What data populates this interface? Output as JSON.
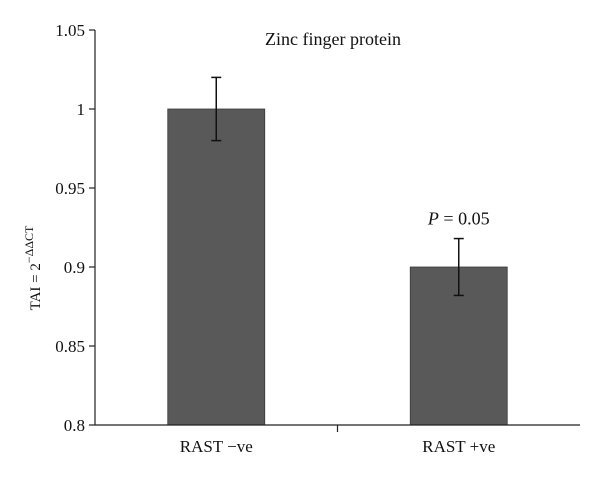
{
  "chart_data": {
    "type": "bar",
    "title": "Zinc finger protein",
    "categories": [
      "RAST −ve",
      "RAST +ve"
    ],
    "values": [
      1.0,
      0.9
    ],
    "error_high": [
      1.02,
      0.918
    ],
    "error_low": [
      0.98,
      0.882
    ],
    "ylabel": "TAI = 2−ΔΔCT",
    "ylabel_parts": {
      "base": "TAI = 2",
      "exponent": "−ΔΔCT"
    },
    "ylim": [
      0.8,
      1.05
    ],
    "yticks": [
      0.8,
      0.85,
      0.9,
      0.95,
      1.0,
      1.05
    ],
    "ytick_labels": [
      "0.8",
      "0.85",
      "0.9",
      "0.95",
      "1",
      "1.05"
    ],
    "annotations": [
      {
        "category_index": 1,
        "italic_part": "P",
        "rest": " = 0.05"
      }
    ],
    "bar_color": "#595959",
    "grid": false,
    "legend": "none"
  }
}
